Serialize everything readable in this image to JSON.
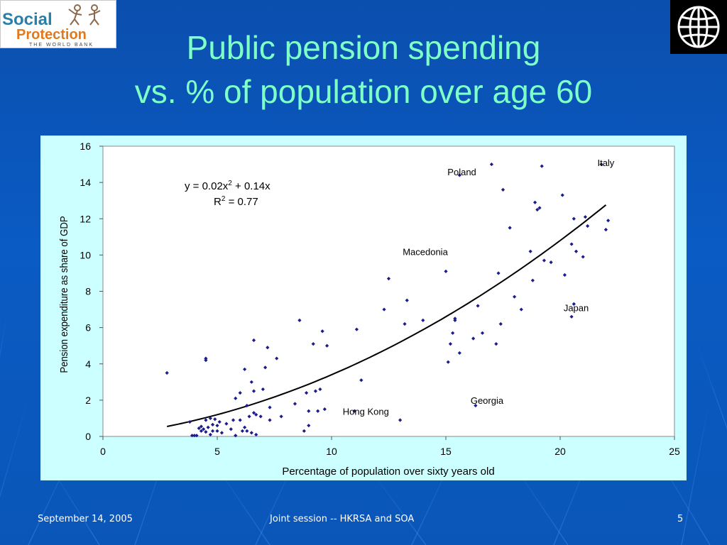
{
  "slide": {
    "title_line1": "Public pension spending",
    "title_line2": "vs. % of population over age 60",
    "logo_text_1": "Social",
    "logo_text_2": "Protection",
    "logo_text_3": "THE WORLD BANK",
    "footer_date": "September 14, 2005",
    "footer_center": "Joint session -- HKRSA and SOA",
    "footer_page": "5",
    "colors": {
      "background": "#0b57bd",
      "title": "#7fffc8",
      "chart_panel": "#ccffff",
      "markers": "#1c1c8c"
    }
  },
  "chart_data": {
    "type": "scatter",
    "title": "",
    "xlabel": "Percentage of population over sixty years old",
    "ylabel": "Pension expenditure as share of GDP",
    "xlim": [
      0,
      25
    ],
    "ylim": [
      0,
      16
    ],
    "xticks": [
      0,
      5,
      10,
      15,
      20,
      25
    ],
    "yticks": [
      0,
      2,
      4,
      6,
      8,
      10,
      12,
      14,
      16
    ],
    "grid": false,
    "equation_line1": "y = 0.02x",
    "equation_exp": "2",
    "equation_line1_tail": " + 0.14x",
    "r2_label": "R",
    "r2_exp": "2",
    "r2_tail": " = 0.77",
    "trendline": {
      "a": 0.02,
      "b": 0.14,
      "x_from": 2.8,
      "x_to": 22.0
    },
    "annotations": [
      {
        "text": "Poland",
        "x": 15.7,
        "y": 14.4
      },
      {
        "text": "Italy",
        "x": 22.0,
        "y": 14.9
      },
      {
        "text": "Macedonia",
        "x": 14.1,
        "y": 10.0
      },
      {
        "text": "Japan",
        "x": 20.7,
        "y": 6.9
      },
      {
        "text": "Georgia",
        "x": 16.8,
        "y": 1.8
      },
      {
        "text": "Hong Kong",
        "x": 11.5,
        "y": 1.2
      }
    ],
    "points": [
      [
        2.8,
        3.5
      ],
      [
        3.8,
        0.8
      ],
      [
        3.9,
        0.05
      ],
      [
        4.0,
        0.05
      ],
      [
        4.1,
        0.05
      ],
      [
        4.2,
        0.45
      ],
      [
        4.3,
        0.55
      ],
      [
        4.3,
        0.3
      ],
      [
        4.4,
        0.4
      ],
      [
        4.5,
        0.25
      ],
      [
        4.5,
        0.9
      ],
      [
        4.5,
        4.3
      ],
      [
        4.5,
        4.2
      ],
      [
        4.6,
        0.5
      ],
      [
        4.7,
        0.1
      ],
      [
        4.7,
        1.0
      ],
      [
        4.8,
        0.3
      ],
      [
        4.8,
        0.65
      ],
      [
        4.9,
        0.95
      ],
      [
        5.0,
        0.3
      ],
      [
        5.0,
        0.6
      ],
      [
        5.1,
        0.8
      ],
      [
        5.2,
        0.2
      ],
      [
        5.4,
        0.7
      ],
      [
        5.6,
        0.4
      ],
      [
        5.7,
        0.9
      ],
      [
        5.8,
        0.05
      ],
      [
        5.8,
        2.1
      ],
      [
        6.0,
        0.9
      ],
      [
        6.0,
        2.4
      ],
      [
        6.1,
        0.3
      ],
      [
        6.2,
        0.5
      ],
      [
        6.2,
        3.7
      ],
      [
        6.3,
        0.3
      ],
      [
        6.3,
        1.7
      ],
      [
        6.4,
        1.1
      ],
      [
        6.5,
        0.2
      ],
      [
        6.5,
        3.0
      ],
      [
        6.6,
        1.3
      ],
      [
        6.6,
        2.5
      ],
      [
        6.6,
        5.3
      ],
      [
        6.7,
        0.1
      ],
      [
        6.7,
        1.2
      ],
      [
        6.9,
        1.1
      ],
      [
        7.0,
        2.6
      ],
      [
        7.1,
        3.8
      ],
      [
        7.2,
        4.9
      ],
      [
        7.3,
        0.9
      ],
      [
        7.3,
        1.6
      ],
      [
        7.6,
        4.3
      ],
      [
        7.8,
        1.1
      ],
      [
        8.4,
        1.8
      ],
      [
        8.6,
        6.4
      ],
      [
        8.8,
        0.3
      ],
      [
        8.9,
        2.4
      ],
      [
        9.0,
        1.4
      ],
      [
        9.0,
        0.6
      ],
      [
        9.2,
        5.1
      ],
      [
        9.3,
        2.5
      ],
      [
        9.4,
        1.4
      ],
      [
        9.5,
        2.6
      ],
      [
        9.6,
        5.8
      ],
      [
        9.7,
        1.5
      ],
      [
        9.8,
        5.0
      ],
      [
        11.0,
        1.4
      ],
      [
        11.1,
        5.9
      ],
      [
        11.3,
        3.1
      ],
      [
        12.3,
        7.0
      ],
      [
        12.5,
        8.7
      ],
      [
        13.0,
        0.9
      ],
      [
        13.2,
        6.2
      ],
      [
        13.3,
        7.5
      ],
      [
        14.0,
        6.4
      ],
      [
        15.0,
        9.1
      ],
      [
        15.1,
        4.1
      ],
      [
        15.2,
        5.1
      ],
      [
        15.3,
        5.7
      ],
      [
        15.4,
        6.4
      ],
      [
        15.4,
        6.5
      ],
      [
        15.6,
        14.4
      ],
      [
        15.6,
        4.6
      ],
      [
        16.2,
        5.4
      ],
      [
        16.3,
        1.7
      ],
      [
        16.4,
        7.2
      ],
      [
        16.6,
        5.7
      ],
      [
        17.0,
        15.0
      ],
      [
        17.2,
        5.1
      ],
      [
        17.3,
        9.0
      ],
      [
        17.4,
        6.2
      ],
      [
        17.5,
        13.6
      ],
      [
        17.8,
        11.5
      ],
      [
        18.0,
        7.7
      ],
      [
        18.3,
        7.0
      ],
      [
        18.7,
        10.2
      ],
      [
        18.8,
        8.6
      ],
      [
        18.9,
        12.9
      ],
      [
        19.0,
        12.5
      ],
      [
        19.1,
        12.6
      ],
      [
        19.2,
        14.9
      ],
      [
        19.3,
        9.7
      ],
      [
        19.6,
        9.6
      ],
      [
        20.1,
        13.3
      ],
      [
        20.2,
        8.9
      ],
      [
        20.5,
        6.6
      ],
      [
        20.5,
        10.6
      ],
      [
        20.6,
        12.0
      ],
      [
        20.6,
        7.3
      ],
      [
        20.7,
        10.2
      ],
      [
        21.0,
        9.9
      ],
      [
        21.1,
        12.1
      ],
      [
        21.2,
        11.6
      ],
      [
        21.8,
        15.0
      ],
      [
        22.0,
        11.4
      ],
      [
        22.1,
        11.9
      ]
    ]
  }
}
